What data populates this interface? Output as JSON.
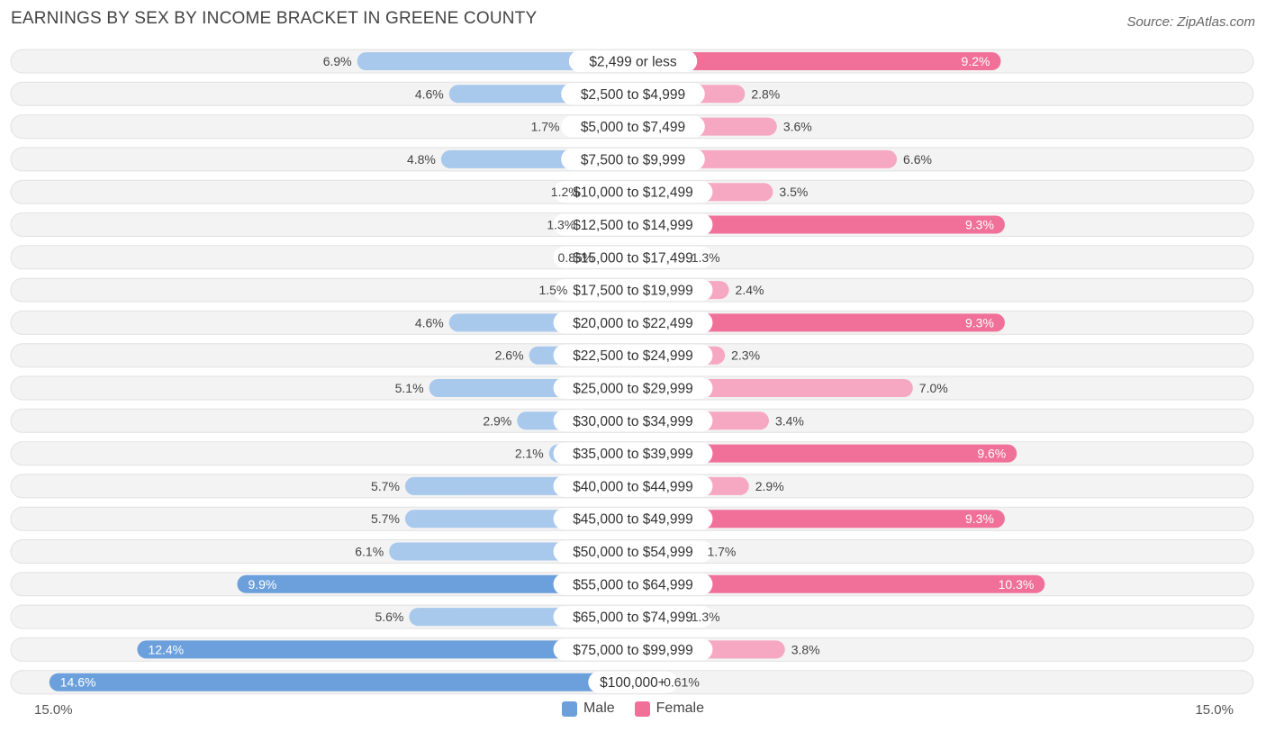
{
  "chart_data": {
    "type": "bar",
    "orientation": "horizontal-diverging",
    "title": "EARNINGS BY SEX BY INCOME BRACKET IN GREENE COUNTY",
    "source": "Source: ZipAtlas.com",
    "categories": [
      "$2,499 or less",
      "$2,500 to $4,999",
      "$5,000 to $7,499",
      "$7,500 to $9,999",
      "$10,000 to $12,499",
      "$12,500 to $14,999",
      "$15,000 to $17,499",
      "$17,500 to $19,999",
      "$20,000 to $22,499",
      "$22,500 to $24,999",
      "$25,000 to $29,999",
      "$30,000 to $34,999",
      "$35,000 to $39,999",
      "$40,000 to $44,999",
      "$45,000 to $49,999",
      "$50,000 to $54,999",
      "$55,000 to $64,999",
      "$65,000 to $74,999",
      "$75,000 to $99,999",
      "$100,000+"
    ],
    "series": [
      {
        "name": "Male",
        "color": "#6ca0dc",
        "color_light": "#a8c8ec",
        "values": [
          6.9,
          4.6,
          1.7,
          4.8,
          1.2,
          1.3,
          0.85,
          1.5,
          4.6,
          2.6,
          5.1,
          2.9,
          2.1,
          5.7,
          5.7,
          6.1,
          9.9,
          5.6,
          12.4,
          14.6
        ],
        "labels": [
          "6.9%",
          "4.6%",
          "1.7%",
          "4.8%",
          "1.2%",
          "1.3%",
          "0.85%",
          "1.5%",
          "4.6%",
          "2.6%",
          "5.1%",
          "2.9%",
          "2.1%",
          "5.7%",
          "5.7%",
          "6.1%",
          "9.9%",
          "5.6%",
          "12.4%",
          "14.6%"
        ]
      },
      {
        "name": "Female",
        "color": "#f0709a",
        "color_light": "#f6a8c2",
        "values": [
          9.2,
          2.8,
          3.6,
          6.6,
          3.5,
          9.3,
          1.3,
          2.4,
          9.3,
          2.3,
          7.0,
          3.4,
          9.6,
          2.9,
          9.3,
          1.7,
          10.3,
          1.3,
          3.8,
          0.61
        ],
        "labels": [
          "9.2%",
          "2.8%",
          "3.6%",
          "6.6%",
          "3.5%",
          "9.3%",
          "1.3%",
          "2.4%",
          "9.3%",
          "2.3%",
          "7.0%",
          "3.4%",
          "9.6%",
          "2.9%",
          "9.3%",
          "1.7%",
          "10.3%",
          "1.3%",
          "3.8%",
          "0.61%"
        ]
      }
    ],
    "xlim": [
      -15.0,
      15.0
    ],
    "axis_labels": {
      "left": "15.0%",
      "right": "15.0%"
    },
    "legend_position": "bottom-center"
  }
}
